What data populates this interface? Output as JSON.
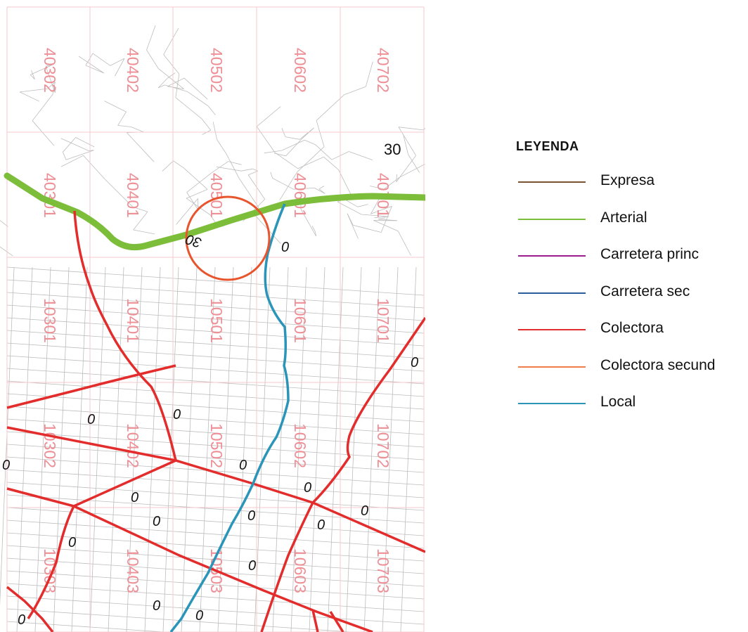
{
  "map": {
    "grid_labels": [
      {
        "id": "40302",
        "text": "40302"
      },
      {
        "id": "40402",
        "text": "40402"
      },
      {
        "id": "40502",
        "text": "40502"
      },
      {
        "id": "40602",
        "text": "40602"
      },
      {
        "id": "40702",
        "text": "40702"
      },
      {
        "id": "40301",
        "text": "40301"
      },
      {
        "id": "40401",
        "text": "40401"
      },
      {
        "id": "40501",
        "text": "40501"
      },
      {
        "id": "40601",
        "text": "40601"
      },
      {
        "id": "40701",
        "text": "40701"
      },
      {
        "id": "10301",
        "text": "10301"
      },
      {
        "id": "10401",
        "text": "10401"
      },
      {
        "id": "10501",
        "text": "10501"
      },
      {
        "id": "10601",
        "text": "10601"
      },
      {
        "id": "10701",
        "text": "10701"
      },
      {
        "id": "10302",
        "text": "10302"
      },
      {
        "id": "10402",
        "text": "10402"
      },
      {
        "id": "10502",
        "text": "10502"
      },
      {
        "id": "10602",
        "text": "10602"
      },
      {
        "id": "10702",
        "text": "10702"
      },
      {
        "id": "10303",
        "text": "10303"
      },
      {
        "id": "10403",
        "text": "10403"
      },
      {
        "id": "10503",
        "text": "10503"
      },
      {
        "id": "10603",
        "text": "10603"
      },
      {
        "id": "10703",
        "text": "10703"
      }
    ],
    "speed_labels": {
      "upright": "30",
      "flipped": "30",
      "zero": "0"
    },
    "colors": {
      "grid": "#f6c9cc",
      "grid_label": "#ee8f96",
      "street": "#bdbdbd",
      "arterial": "#7cbd3a",
      "colectora": "#e32d2d",
      "local": "#2a95b9",
      "highlight_circle": "#e8542c"
    }
  },
  "legend": {
    "title": "LEYENDA",
    "items": [
      {
        "label": "Expresa",
        "color": "#7a5330"
      },
      {
        "label": "Arterial",
        "color": "#7cbd3a"
      },
      {
        "label": "Carretera princ",
        "color": "#9b1c8e"
      },
      {
        "label": "Carretera sec",
        "color": "#2c5c9a"
      },
      {
        "label": "Colectora",
        "color": "#e32d2d"
      },
      {
        "label": "Colectora secund",
        "color": "#f07d4c"
      },
      {
        "label": "Local",
        "color": "#2a95b9"
      }
    ]
  }
}
